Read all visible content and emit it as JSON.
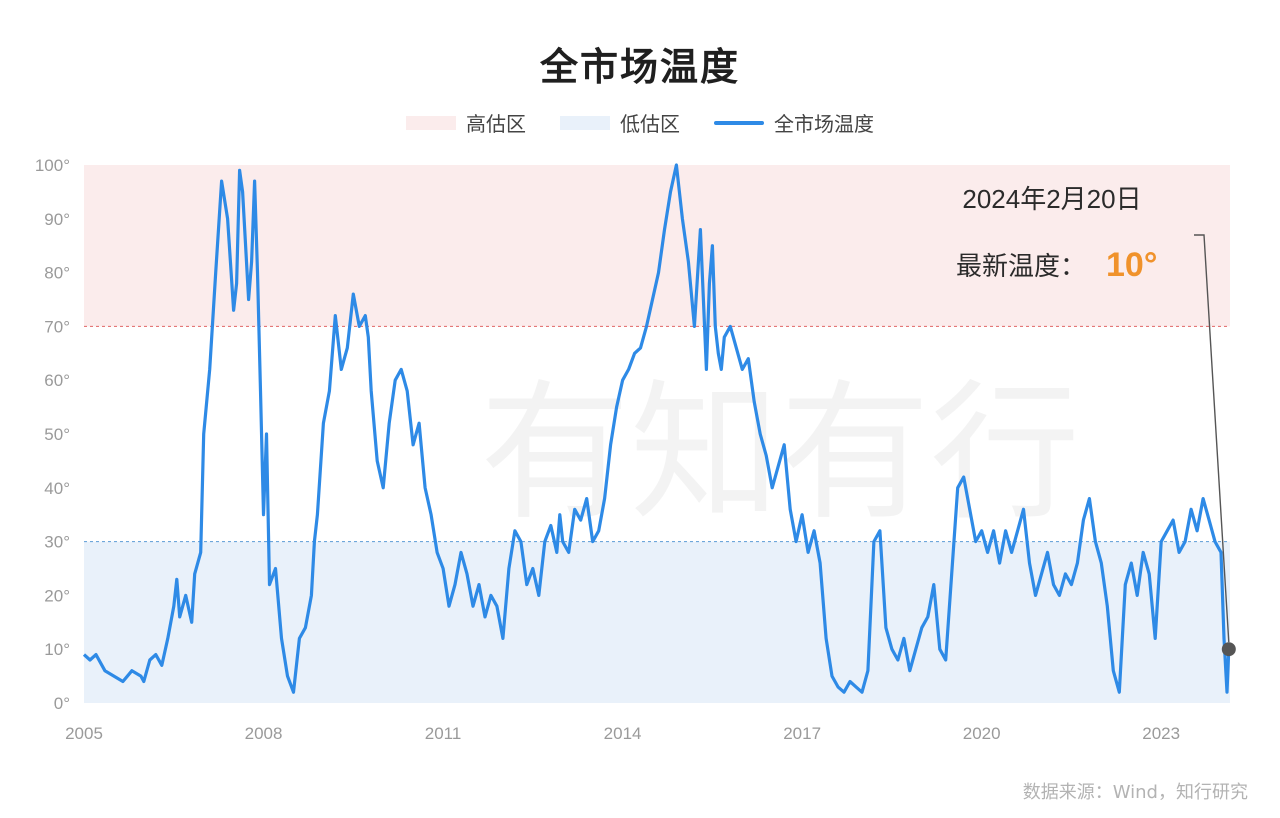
{
  "title": "全市场温度",
  "legend": {
    "high_zone": "高估区",
    "low_zone": "低估区",
    "series": "全市场温度"
  },
  "annotation": {
    "date": "2024年2月20日",
    "label": "最新温度：",
    "value": "10°"
  },
  "watermark": "有知有行",
  "source": "数据来源：Wind，知行研究",
  "colors": {
    "line": "#2e8ae6",
    "high_zone": "#fbecec",
    "low_zone": "#e9f1fa",
    "high_threshold": "#e06666",
    "low_threshold": "#5b9bd5",
    "value_accent": "#f0922b",
    "marker": "#555555"
  },
  "chart_data": {
    "type": "line",
    "title": "全市场温度",
    "xlabel": "",
    "ylabel": "",
    "xlim": [
      2005.0,
      2024.15
    ],
    "ylim": [
      0,
      100
    ],
    "x_ticks": [
      2005,
      2008,
      2011,
      2014,
      2017,
      2020,
      2023
    ],
    "y_ticks": [
      "0°",
      "10°",
      "20°",
      "30°",
      "40°",
      "50°",
      "60°",
      "70°",
      "80°",
      "90°",
      "100°"
    ],
    "bands": [
      {
        "name": "高估区",
        "from": 70,
        "to": 100
      },
      {
        "name": "低估区",
        "from": 0,
        "to": 30
      }
    ],
    "series": [
      {
        "name": "全市场温度",
        "x": [
          2005.0,
          2005.1,
          2005.2,
          2005.35,
          2005.5,
          2005.65,
          2005.8,
          2005.95,
          2006.0,
          2006.1,
          2006.2,
          2006.3,
          2006.4,
          2006.5,
          2006.55,
          2006.6,
          2006.7,
          2006.8,
          2006.85,
          2006.95,
          2007.0,
          2007.1,
          2007.2,
          2007.3,
          2007.4,
          2007.5,
          2007.55,
          2007.6,
          2007.65,
          2007.7,
          2007.75,
          2007.8,
          2007.85,
          2007.9,
          2007.95,
          2008.0,
          2008.05,
          2008.1,
          2008.2,
          2008.3,
          2008.4,
          2008.5,
          2008.6,
          2008.7,
          2008.8,
          2008.85,
          2008.9,
          2009.0,
          2009.1,
          2009.2,
          2009.3,
          2009.4,
          2009.5,
          2009.6,
          2009.7,
          2009.75,
          2009.8,
          2009.9,
          2010.0,
          2010.1,
          2010.2,
          2010.3,
          2010.4,
          2010.5,
          2010.6,
          2010.7,
          2010.8,
          2010.9,
          2011.0,
          2011.1,
          2011.2,
          2011.3,
          2011.4,
          2011.5,
          2011.6,
          2011.7,
          2011.8,
          2011.9,
          2012.0,
          2012.1,
          2012.2,
          2012.3,
          2012.4,
          2012.5,
          2012.6,
          2012.7,
          2012.8,
          2012.9,
          2012.95,
          2013.0,
          2013.1,
          2013.2,
          2013.3,
          2013.4,
          2013.5,
          2013.6,
          2013.7,
          2013.8,
          2013.9,
          2014.0,
          2014.1,
          2014.2,
          2014.3,
          2014.4,
          2014.5,
          2014.6,
          2014.7,
          2014.8,
          2014.9,
          2015.0,
          2015.1,
          2015.2,
          2015.3,
          2015.35,
          2015.4,
          2015.45,
          2015.5,
          2015.55,
          2015.6,
          2015.65,
          2015.7,
          2015.8,
          2015.9,
          2016.0,
          2016.1,
          2016.2,
          2016.3,
          2016.4,
          2016.5,
          2016.6,
          2016.7,
          2016.8,
          2016.9,
          2017.0,
          2017.1,
          2017.2,
          2017.3,
          2017.4,
          2017.5,
          2017.6,
          2017.7,
          2017.8,
          2017.9,
          2018.0,
          2018.1,
          2018.2,
          2018.3,
          2018.4,
          2018.5,
          2018.6,
          2018.7,
          2018.8,
          2018.9,
          2019.0,
          2019.1,
          2019.2,
          2019.3,
          2019.4,
          2019.5,
          2019.6,
          2019.7,
          2019.8,
          2019.9,
          2020.0,
          2020.1,
          2020.2,
          2020.3,
          2020.4,
          2020.5,
          2020.6,
          2020.7,
          2020.8,
          2020.9,
          2021.0,
          2021.1,
          2021.2,
          2021.3,
          2021.4,
          2021.5,
          2021.6,
          2021.7,
          2021.8,
          2021.9,
          2022.0,
          2022.1,
          2022.2,
          2022.3,
          2022.4,
          2022.5,
          2022.6,
          2022.7,
          2022.8,
          2022.9,
          2023.0,
          2023.1,
          2023.2,
          2023.3,
          2023.4,
          2023.5,
          2023.6,
          2023.7,
          2023.8,
          2023.9,
          2024.0,
          2024.05,
          2024.1,
          2024.13
        ],
        "values": [
          9,
          8,
          9,
          6,
          5,
          4,
          6,
          5,
          4,
          8,
          9,
          7,
          12,
          18,
          23,
          16,
          20,
          15,
          24,
          28,
          50,
          62,
          80,
          97,
          90,
          73,
          78,
          99,
          95,
          85,
          75,
          82,
          97,
          80,
          58,
          35,
          50,
          22,
          25,
          12,
          5,
          2,
          12,
          14,
          20,
          30,
          35,
          52,
          58,
          72,
          62,
          66,
          76,
          70,
          72,
          68,
          58,
          45,
          40,
          52,
          60,
          62,
          58,
          48,
          52,
          40,
          35,
          28,
          25,
          18,
          22,
          28,
          24,
          18,
          22,
          16,
          20,
          18,
          12,
          25,
          32,
          30,
          22,
          25,
          20,
          30,
          33,
          28,
          35,
          30,
          28,
          36,
          34,
          38,
          30,
          32,
          38,
          48,
          55,
          60,
          62,
          65,
          66,
          70,
          75,
          80,
          88,
          95,
          100,
          90,
          82,
          70,
          88,
          75,
          62,
          78,
          85,
          70,
          65,
          62,
          68,
          70,
          66,
          62,
          64,
          56,
          50,
          46,
          40,
          44,
          48,
          36,
          30,
          35,
          28,
          32,
          26,
          12,
          5,
          3,
          2,
          4,
          3,
          2,
          6,
          30,
          32,
          14,
          10,
          8,
          12,
          6,
          10,
          14,
          16,
          22,
          10,
          8,
          24,
          40,
          42,
          36,
          30,
          32,
          28,
          32,
          26,
          32,
          28,
          32,
          36,
          26,
          20,
          24,
          28,
          22,
          20,
          24,
          22,
          26,
          34,
          38,
          30,
          26,
          18,
          6,
          2,
          22,
          26,
          20,
          28,
          24,
          12,
          30,
          32,
          34,
          28,
          30,
          36,
          32,
          38,
          34,
          30,
          28,
          12,
          2,
          10
        ]
      }
    ],
    "latest": {
      "x": 2024.13,
      "value": 10
    }
  }
}
